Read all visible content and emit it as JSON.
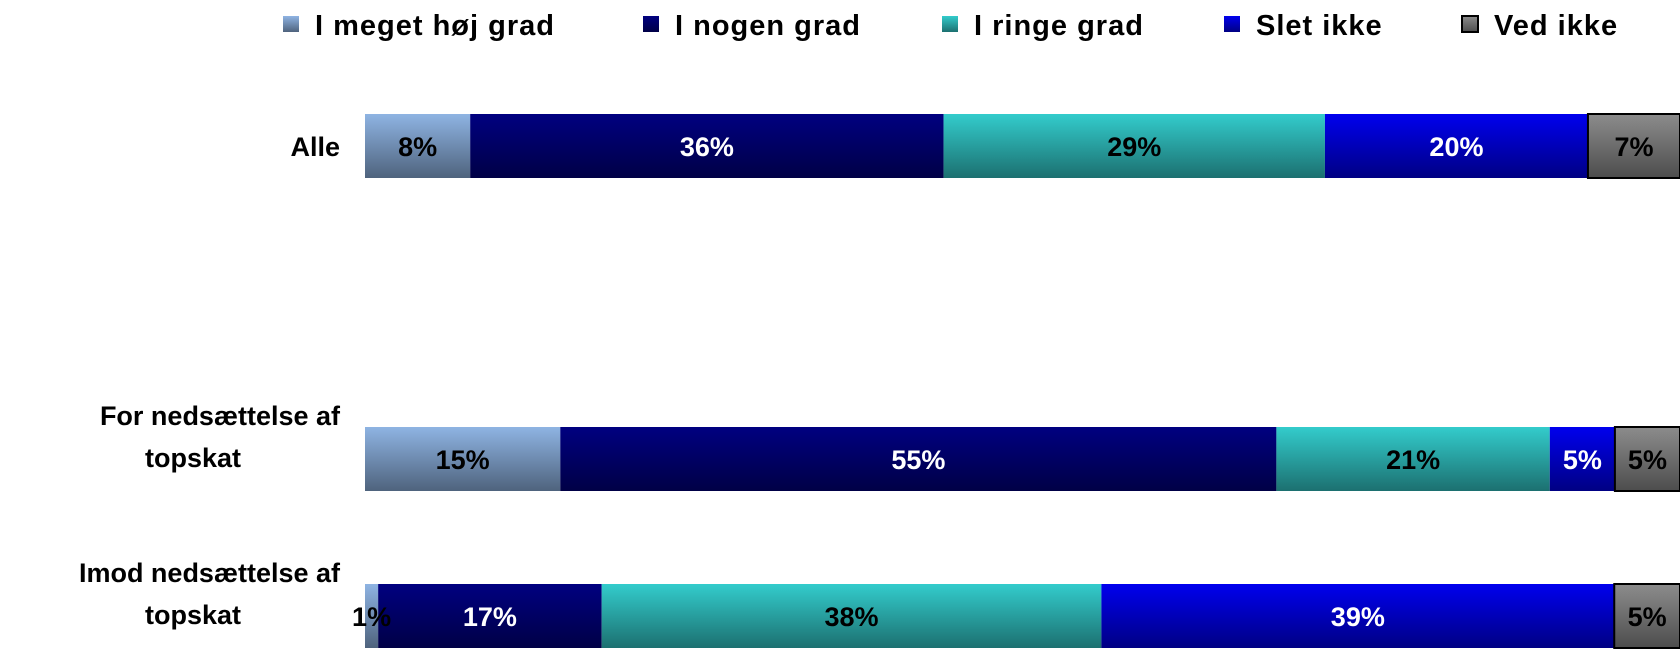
{
  "chart_data": {
    "type": "bar",
    "orientation": "horizontal",
    "stacked": true,
    "normalized": true,
    "categories": [
      [
        "Alle"
      ],
      [
        "For nedsættelse af",
        "topskat"
      ],
      [
        "Imod nedsættelse af",
        "topskat"
      ]
    ],
    "series": [
      {
        "name": "I meget høj grad",
        "values": [
          8,
          15,
          1
        ],
        "labels": [
          "8%",
          "15%",
          "1%"
        ],
        "color": "#8fb4e3",
        "label_color": "#000000"
      },
      {
        "name": "I nogen grad",
        "values": [
          36,
          55,
          17
        ],
        "labels": [
          "36%",
          "55%",
          "17%"
        ],
        "color": "#000080",
        "label_color": "#ffffff"
      },
      {
        "name": "I ringe grad",
        "values": [
          29,
          21,
          38
        ],
        "labels": [
          "29%",
          "21%",
          "38%"
        ],
        "color": "#33cccc",
        "label_color": "#000000"
      },
      {
        "name": "Slet ikke",
        "values": [
          20,
          5,
          39
        ],
        "labels": [
          "20%",
          "5%",
          "39%"
        ],
        "color": "#0000ee",
        "label_color": "#ffffff"
      },
      {
        "name": "Ved ikke",
        "values": [
          7,
          5,
          5
        ],
        "labels": [
          "7%",
          "5%",
          "5%"
        ],
        "color": "#8c8c8c",
        "label_color": "#000000"
      }
    ],
    "legend_position": "top",
    "grid": false
  }
}
